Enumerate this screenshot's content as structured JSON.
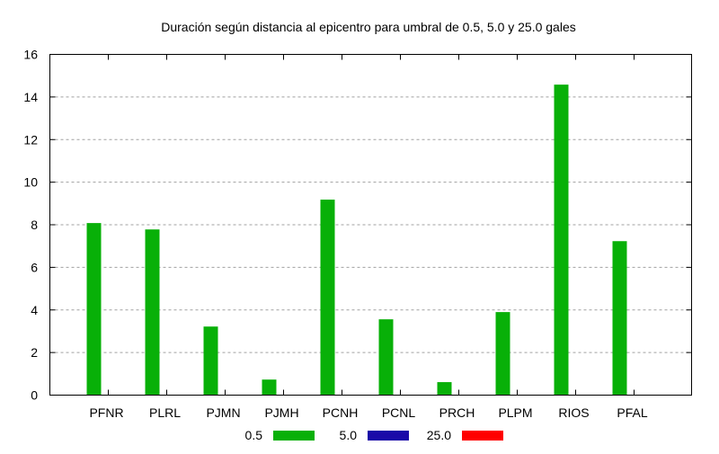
{
  "chart_data": {
    "type": "bar",
    "title": "Duración según distancia al epicentro para umbral de 0.5, 5.0 y 25.0 gales",
    "xlabel": "",
    "ylabel": "",
    "ylim": [
      0,
      16
    ],
    "yticks": [
      "0",
      "2",
      "4",
      "6",
      "8",
      "10",
      "12",
      "14",
      "16"
    ],
    "grid": true,
    "legend_position": "bottom-center",
    "categories": [
      "PFNR",
      "PLRL",
      "PJMN",
      "PJMH",
      "PCNH",
      "PCNL",
      "PRCH",
      "PLPM",
      "RIOS",
      "PFAL"
    ],
    "series": [
      {
        "name": "0.5",
        "color": "#08b008",
        "values": [
          8.08,
          7.78,
          3.22,
          0.73,
          9.18,
          3.56,
          0.61,
          3.9,
          14.58,
          7.23
        ]
      },
      {
        "name": "5.0",
        "color": "#1a0aa8",
        "values": [
          0,
          0,
          0,
          0,
          0,
          0,
          0,
          0,
          0,
          0
        ]
      },
      {
        "name": "25.0",
        "color": "#ff0000",
        "values": [
          0,
          0,
          0,
          0,
          0,
          0,
          0,
          0,
          0,
          0
        ]
      }
    ]
  }
}
